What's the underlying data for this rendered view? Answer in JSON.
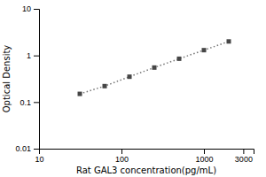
{
  "chart_data": {
    "type": "line",
    "xlabel": "Rat GAL3 concentration(pg/mL)",
    "ylabel": "Optical Density",
    "x": [
      31.25,
      62.5,
      125,
      250,
      500,
      1000,
      2000
    ],
    "values": [
      0.15,
      0.22,
      0.35,
      0.55,
      0.85,
      1.3,
      2.0
    ],
    "color": "#777777",
    "marker": "square",
    "line_style": "dotted",
    "log": true,
    "xlim": [
      10,
      4000
    ],
    "ylim": [
      0.01,
      10
    ],
    "xticks": [
      10,
      100,
      1000,
      3000
    ],
    "yticks": [
      0.01,
      0.1,
      1,
      10
    ]
  }
}
